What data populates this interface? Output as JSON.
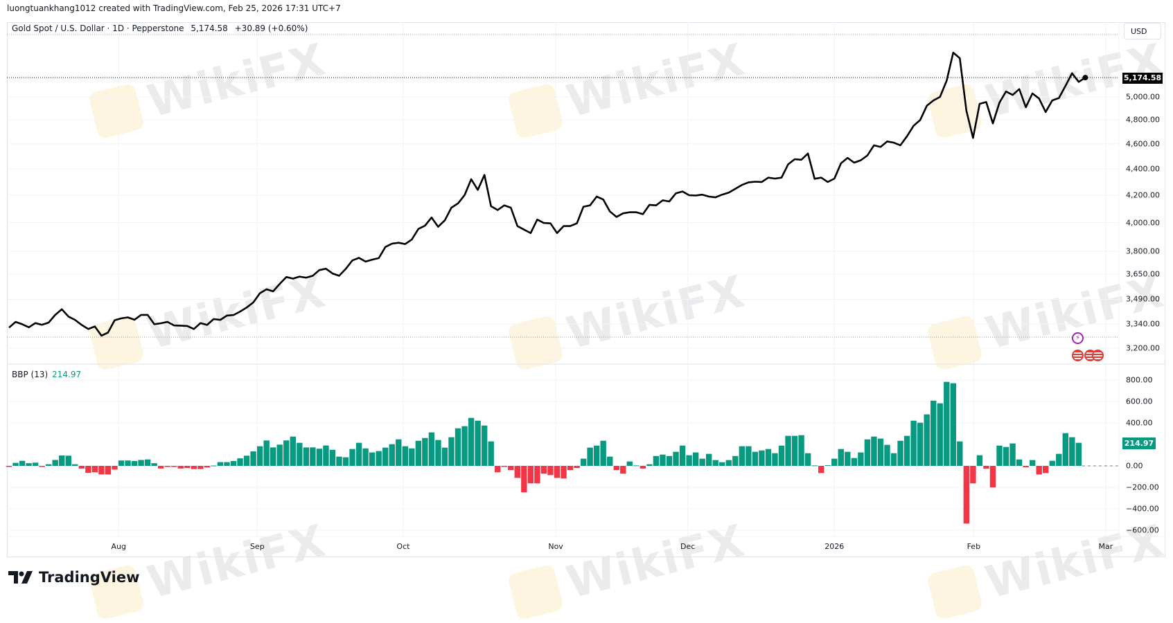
{
  "header": {
    "attribution": "luongtuankhang1012 created with TradingView.com, Feb 25, 2026 17:31 UTC+7"
  },
  "legend": {
    "symbol": "Gold Spot / U.S. Dollar · 1D · Pepperstone",
    "price": "5,174.58",
    "change": "+30.89 (+0.60%)"
  },
  "currency": "USD",
  "last_price_label": "5,174.58",
  "indicator": {
    "name": "BBP (13)",
    "value": "214.97",
    "last_label": "214.97"
  },
  "brand": "TradingView",
  "watermark": "WikiFX",
  "icons": {
    "event": "lightning-icon",
    "flag": "us-flag-icon"
  },
  "colors": {
    "line": "#000000",
    "bull": "#089981",
    "bear": "#F23645",
    "grid": "#f0f3fa"
  },
  "chart_data": [
    {
      "type": "line",
      "title": "Gold Spot / U.S. Dollar · 1D · Pepperstone",
      "scale": "log",
      "ylim": [
        3150,
        5600
      ],
      "y_ticks": [
        5000,
        4800,
        4600,
        4400,
        4200,
        4000,
        3800,
        3650,
        3490,
        3340,
        3200
      ],
      "y_tick_labels": [
        "5,000.00",
        "4,800.00",
        "4,600.00",
        "4,400.00",
        "4,200.00",
        "4,000.00",
        "3,800.00",
        "3,650.00",
        "3,490.00",
        "3,340.00",
        "3,200.00"
      ],
      "x_ticks": [
        {
          "label": "Aug",
          "bar": 16.6
        },
        {
          "label": "Sep",
          "bar": 37.6
        },
        {
          "label": "Oct",
          "bar": 59.7
        },
        {
          "label": "Nov",
          "bar": 82.8
        },
        {
          "label": "Dec",
          "bar": 102.8
        },
        {
          "label": "2026",
          "bar": 125
        },
        {
          "label": "Feb",
          "bar": 146.1
        },
        {
          "label": "Mar",
          "bar": 166.1
        }
      ],
      "values": [
        3319,
        3353,
        3339,
        3321,
        3346,
        3336,
        3349,
        3395,
        3429,
        3385,
        3365,
        3335,
        3311,
        3326,
        3272,
        3290,
        3363,
        3374,
        3380,
        3366,
        3395,
        3395,
        3339,
        3345,
        3353,
        3332,
        3331,
        3329,
        3311,
        3346,
        3335,
        3370,
        3365,
        3391,
        3394,
        3415,
        3440,
        3471,
        3528,
        3553,
        3540,
        3587,
        3631,
        3621,
        3634,
        3627,
        3639,
        3676,
        3685,
        3654,
        3639,
        3684,
        3740,
        3757,
        3732,
        3745,
        3755,
        3830,
        3853,
        3859,
        3850,
        3881,
        3955,
        3978,
        4036,
        3970,
        4016,
        4107,
        4138,
        4200,
        4320,
        4239,
        4353,
        4118,
        4090,
        4124,
        4107,
        3975,
        3950,
        3926,
        4021,
        3997,
        3994,
        3926,
        3975,
        3975,
        3994,
        4114,
        4124,
        4189,
        4167,
        4080,
        4040,
        4066,
        4074,
        4074,
        4060,
        4128,
        4124,
        4161,
        4153,
        4213,
        4227,
        4199,
        4197,
        4203,
        4189,
        4183,
        4203,
        4218,
        4247,
        4276,
        4296,
        4301,
        4299,
        4332,
        4325,
        4332,
        4436,
        4476,
        4472,
        4522,
        4323,
        4332,
        4299,
        4325,
        4444,
        4487,
        4449,
        4468,
        4506,
        4588,
        4575,
        4620,
        4610,
        4588,
        4663,
        4750,
        4799,
        4922,
        4969,
        5000,
        5146,
        5409,
        5356,
        4879,
        4649,
        4939,
        4955,
        4770,
        4949,
        5049,
        5017,
        5070,
        4909,
        5031,
        4986,
        4868,
        4969,
        4990,
        5099,
        5215,
        5135,
        5174.58
      ],
      "high_line": 5440,
      "low_line": 3265
    },
    {
      "type": "bar",
      "title": "BBP (13)",
      "ylim": [
        -650,
        850
      ],
      "y_ticks": [
        800,
        600,
        400,
        0,
        -200,
        -400,
        -600
      ],
      "y_tick_labels": [
        "800.00",
        "600.00",
        "400.00",
        "0.00",
        "−200.00",
        "−400.00",
        "−600.00"
      ],
      "values": [
        -10,
        28,
        47,
        25,
        30,
        -10,
        15,
        55,
        97,
        95,
        15,
        -25,
        -65,
        -60,
        -80,
        -80,
        -35,
        50,
        50,
        45,
        55,
        60,
        25,
        -25,
        -10,
        -10,
        -25,
        -20,
        -30,
        -30,
        -15,
        3,
        35,
        35,
        45,
        70,
        95,
        135,
        183,
        237,
        172,
        198,
        237,
        273,
        215,
        172,
        172,
        160,
        190,
        150,
        86,
        80,
        157,
        215,
        163,
        125,
        138,
        170,
        202,
        247,
        183,
        163,
        234,
        260,
        312,
        241,
        170,
        267,
        350,
        370,
        447,
        421,
        376,
        228,
        -60,
        -10,
        -39,
        -112,
        -247,
        -163,
        -163,
        -73,
        -86,
        -112,
        -118,
        -39,
        -20,
        67,
        170,
        189,
        234,
        86,
        -39,
        -73,
        41,
        4,
        -25,
        15,
        92,
        105,
        92,
        131,
        189,
        99,
        125,
        67,
        112,
        54,
        34,
        54,
        92,
        183,
        183,
        131,
        144,
        157,
        118,
        189,
        280,
        280,
        286,
        118,
        4,
        -67,
        6,
        67,
        157,
        131,
        73,
        125,
        247,
        273,
        254,
        196,
        118,
        234,
        280,
        421,
        402,
        480,
        608,
        583,
        783,
        770,
        228,
        -538,
        -163,
        99,
        -26,
        -202,
        189,
        176,
        209,
        60,
        -13,
        54,
        -80,
        -67,
        47,
        112,
        305,
        267,
        214.97
      ]
    }
  ]
}
